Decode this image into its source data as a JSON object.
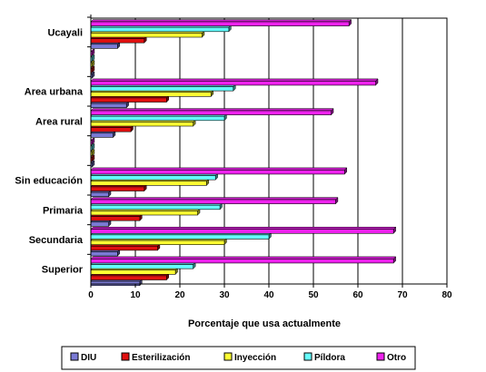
{
  "chart_data": {
    "type": "bar",
    "orientation": "horizontal",
    "xlabel": "Porcentaje que usa actualmente",
    "xlim": [
      0,
      80
    ],
    "xticks": [
      0,
      10,
      20,
      30,
      40,
      50,
      60,
      70,
      80
    ],
    "grid": "vertical",
    "legend_position": "bottom",
    "categories": [
      "Ucayali",
      "",
      "Area urbana",
      "Area rural",
      "",
      "Sin educación",
      "Primaria",
      "Secundaria",
      "Superior"
    ],
    "series": [
      {
        "name": "DIU",
        "color": "#7b7bd6",
        "values": [
          6,
          null,
          8,
          5,
          null,
          4,
          4,
          6,
          11
        ]
      },
      {
        "name": "Esterilización",
        "color": "#e01010",
        "values": [
          12,
          null,
          17,
          9,
          null,
          12,
          11,
          15,
          17
        ]
      },
      {
        "name": "Inyección",
        "color": "#ffff33",
        "values": [
          25,
          null,
          27,
          23,
          null,
          26,
          24,
          30,
          19
        ]
      },
      {
        "name": "Píldora",
        "color": "#66ffff",
        "values": [
          31,
          null,
          32,
          30,
          null,
          28,
          29,
          40,
          23
        ]
      },
      {
        "name": "Otro",
        "color": "#ee22ee",
        "values": [
          58,
          null,
          64,
          54,
          null,
          57,
          55,
          68,
          68
        ]
      }
    ]
  }
}
